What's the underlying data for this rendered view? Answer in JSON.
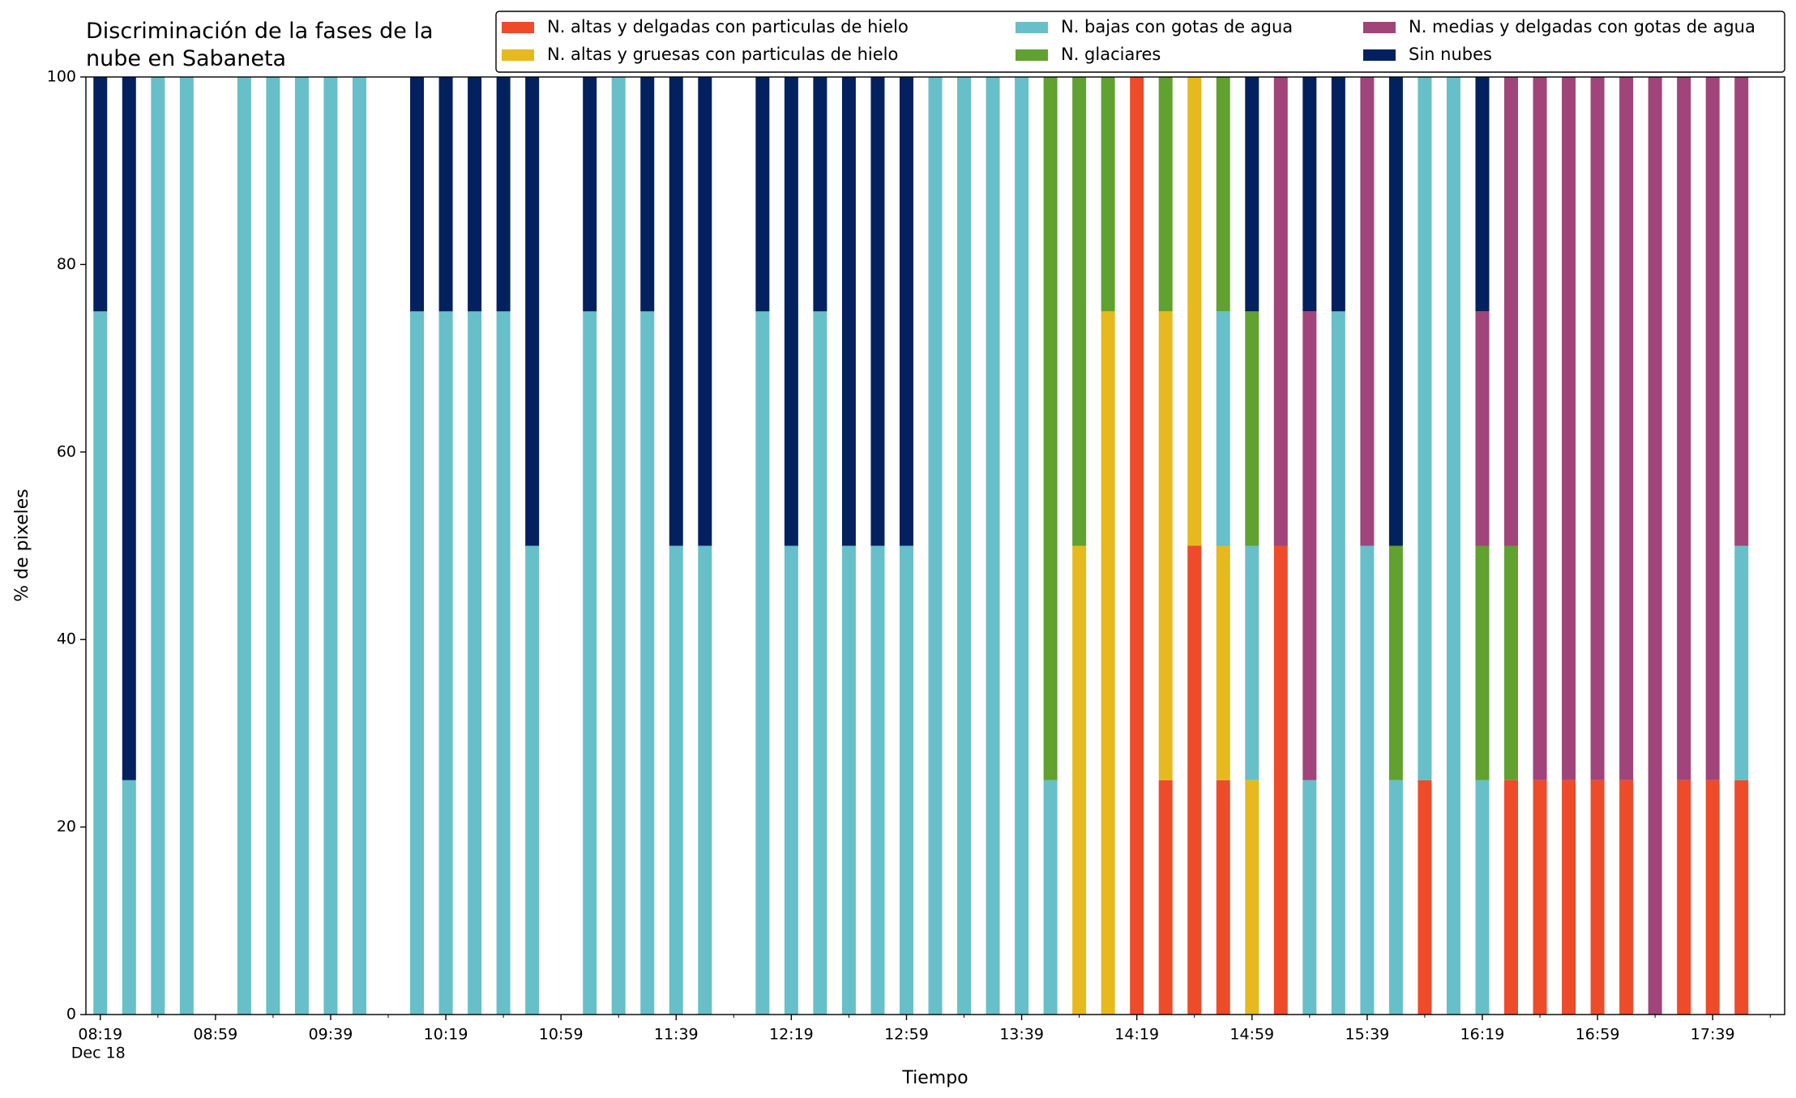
{
  "chart_data": {
    "type": "stacked_bar",
    "title": "Discriminación de la fases de la\nnube en Sabaneta",
    "xlabel": "Tiempo",
    "ylabel": "% de pixeles",
    "x": [
      "08:19",
      "08:29",
      "08:39",
      "08:49",
      "09:09",
      "09:19",
      "09:29",
      "09:39",
      "09:49",
      "10:09",
      "10:19",
      "10:29",
      "10:39",
      "10:49",
      "11:09",
      "11:19",
      "11:29",
      "11:39",
      "11:49",
      "12:09",
      "12:19",
      "12:29",
      "12:39",
      "12:49",
      "12:59",
      "13:09",
      "13:19",
      "13:29",
      "13:39",
      "13:49",
      "13:59",
      "14:09",
      "14:19",
      "14:29",
      "14:39",
      "14:49",
      "14:59",
      "15:09",
      "15:19",
      "15:29",
      "15:39",
      "15:49",
      "15:59",
      "16:09",
      "16:19",
      "16:29",
      "16:39",
      "16:49",
      "16:59",
      "17:09",
      "17:19",
      "17:29",
      "17:39",
      "17:49"
    ],
    "xlim": [
      "08:14",
      "18:04"
    ],
    "xticks": [
      "08:19",
      "08:59",
      "09:39",
      "10:19",
      "10:59",
      "11:39",
      "12:19",
      "12:59",
      "13:39",
      "14:19",
      "14:59",
      "15:39",
      "16:19",
      "16:59",
      "17:39"
    ],
    "xtick_sublabel": "Dec 18",
    "xminorticks": [
      "08:39",
      "09:19",
      "09:59",
      "10:39",
      "11:19",
      "11:59",
      "12:39",
      "13:19",
      "13:59",
      "14:39",
      "15:19",
      "15:59",
      "16:39",
      "17:19",
      "17:59"
    ],
    "ylim": [
      0,
      100
    ],
    "yticks": [
      0,
      20,
      40,
      60,
      80,
      100
    ],
    "grid": false,
    "legend": "top",
    "series": [
      {
        "name": "N. altas y delgadas con particulas de hielo",
        "color": "#ee4b2b",
        "values": [
          0,
          0,
          0,
          0,
          0,
          0,
          0,
          0,
          0,
          0,
          0,
          0,
          0,
          0,
          0,
          0,
          0,
          0,
          0,
          0,
          0,
          0,
          0,
          0,
          0,
          0,
          0,
          0,
          0,
          0,
          0,
          0,
          100,
          25,
          50,
          25,
          0,
          50,
          0,
          0,
          0,
          0,
          25,
          0,
          0,
          25,
          25,
          25,
          25,
          25,
          0,
          25,
          25,
          25
        ]
      },
      {
        "name": "N. altas y gruesas con particulas de hielo",
        "color": "#e6b91e",
        "values": [
          0,
          0,
          0,
          0,
          0,
          0,
          0,
          0,
          0,
          0,
          0,
          0,
          0,
          0,
          0,
          0,
          0,
          0,
          0,
          0,
          0,
          0,
          0,
          0,
          0,
          0,
          0,
          0,
          0,
          0,
          50,
          75,
          0,
          50,
          50,
          25,
          25,
          0,
          0,
          0,
          0,
          0,
          0,
          0,
          0,
          0,
          0,
          0,
          0,
          0,
          0,
          0,
          0,
          0
        ]
      },
      {
        "name": "N. bajas con gotas de agua",
        "color": "#67bfc9",
        "values": [
          75,
          25,
          100,
          100,
          100,
          100,
          100,
          100,
          100,
          75,
          75,
          75,
          75,
          50,
          75,
          100,
          75,
          50,
          50,
          75,
          50,
          75,
          50,
          50,
          50,
          100,
          100,
          100,
          100,
          25,
          0,
          0,
          0,
          0,
          0,
          25,
          25,
          0,
          25,
          75,
          50,
          25,
          75,
          100,
          25,
          0,
          0,
          0,
          0,
          0,
          0,
          0,
          0,
          25
        ]
      },
      {
        "name": "N. glaciares",
        "color": "#60a12f",
        "values": [
          0,
          0,
          0,
          0,
          0,
          0,
          0,
          0,
          0,
          0,
          0,
          0,
          0,
          0,
          0,
          0,
          0,
          0,
          0,
          0,
          0,
          0,
          0,
          0,
          0,
          0,
          0,
          0,
          0,
          75,
          50,
          25,
          0,
          25,
          0,
          25,
          25,
          0,
          0,
          0,
          0,
          25,
          0,
          0,
          25,
          25,
          0,
          0,
          0,
          0,
          0,
          0,
          0,
          0
        ]
      },
      {
        "name": "N. medias y delgadas con gotas de agua",
        "color": "#a0447a",
        "values": [
          0,
          0,
          0,
          0,
          0,
          0,
          0,
          0,
          0,
          0,
          0,
          0,
          0,
          0,
          0,
          0,
          0,
          0,
          0,
          0,
          0,
          0,
          0,
          0,
          0,
          0,
          0,
          0,
          0,
          0,
          0,
          0,
          0,
          0,
          0,
          0,
          0,
          50,
          50,
          0,
          50,
          0,
          0,
          0,
          25,
          50,
          75,
          75,
          75,
          75,
          100,
          75,
          75,
          50
        ]
      },
      {
        "name": "Sin nubes",
        "color": "#03215e",
        "values": [
          25,
          75,
          0,
          0,
          0,
          0,
          0,
          0,
          0,
          25,
          25,
          25,
          25,
          50,
          25,
          0,
          25,
          50,
          50,
          25,
          50,
          25,
          50,
          50,
          50,
          0,
          0,
          0,
          0,
          0,
          0,
          0,
          0,
          0,
          0,
          0,
          25,
          0,
          25,
          25,
          0,
          50,
          0,
          0,
          25,
          0,
          0,
          0,
          0,
          0,
          0,
          0,
          0,
          0
        ]
      }
    ]
  }
}
